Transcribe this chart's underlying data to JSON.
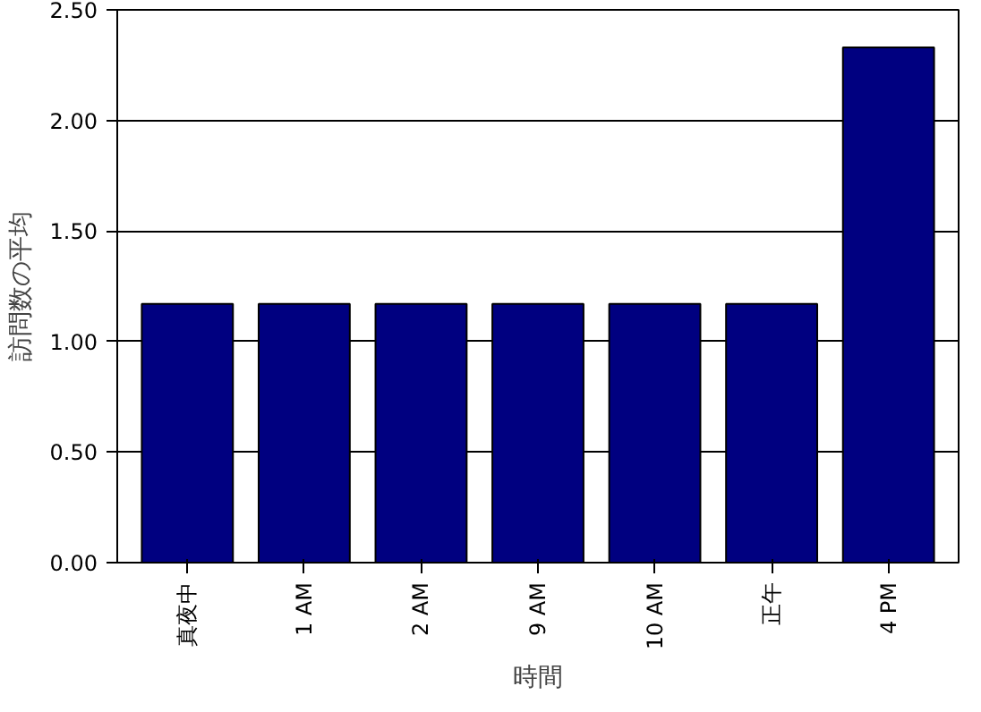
{
  "chart_data": {
    "type": "bar",
    "xlabel": "時間",
    "ylabel": "訪問数の平均",
    "categories": [
      "真夜中",
      "1 AM",
      "2 AM",
      "9 AM",
      "10 AM",
      "正午",
      "4 PM"
    ],
    "values": [
      1.17,
      1.17,
      1.17,
      1.17,
      1.17,
      1.17,
      2.33
    ],
    "color": "#000080",
    "ylim": [
      0,
      2.5
    ],
    "yticks": [
      {
        "value": 0,
        "label": "0.00"
      },
      {
        "value": 0.5,
        "label": "0.50"
      },
      {
        "value": 1,
        "label": "1.00"
      },
      {
        "value": 1.5,
        "label": "1.50"
      },
      {
        "value": 2,
        "label": "2.00"
      },
      {
        "value": 2.5,
        "label": "2.50"
      }
    ],
    "grid": "y"
  }
}
